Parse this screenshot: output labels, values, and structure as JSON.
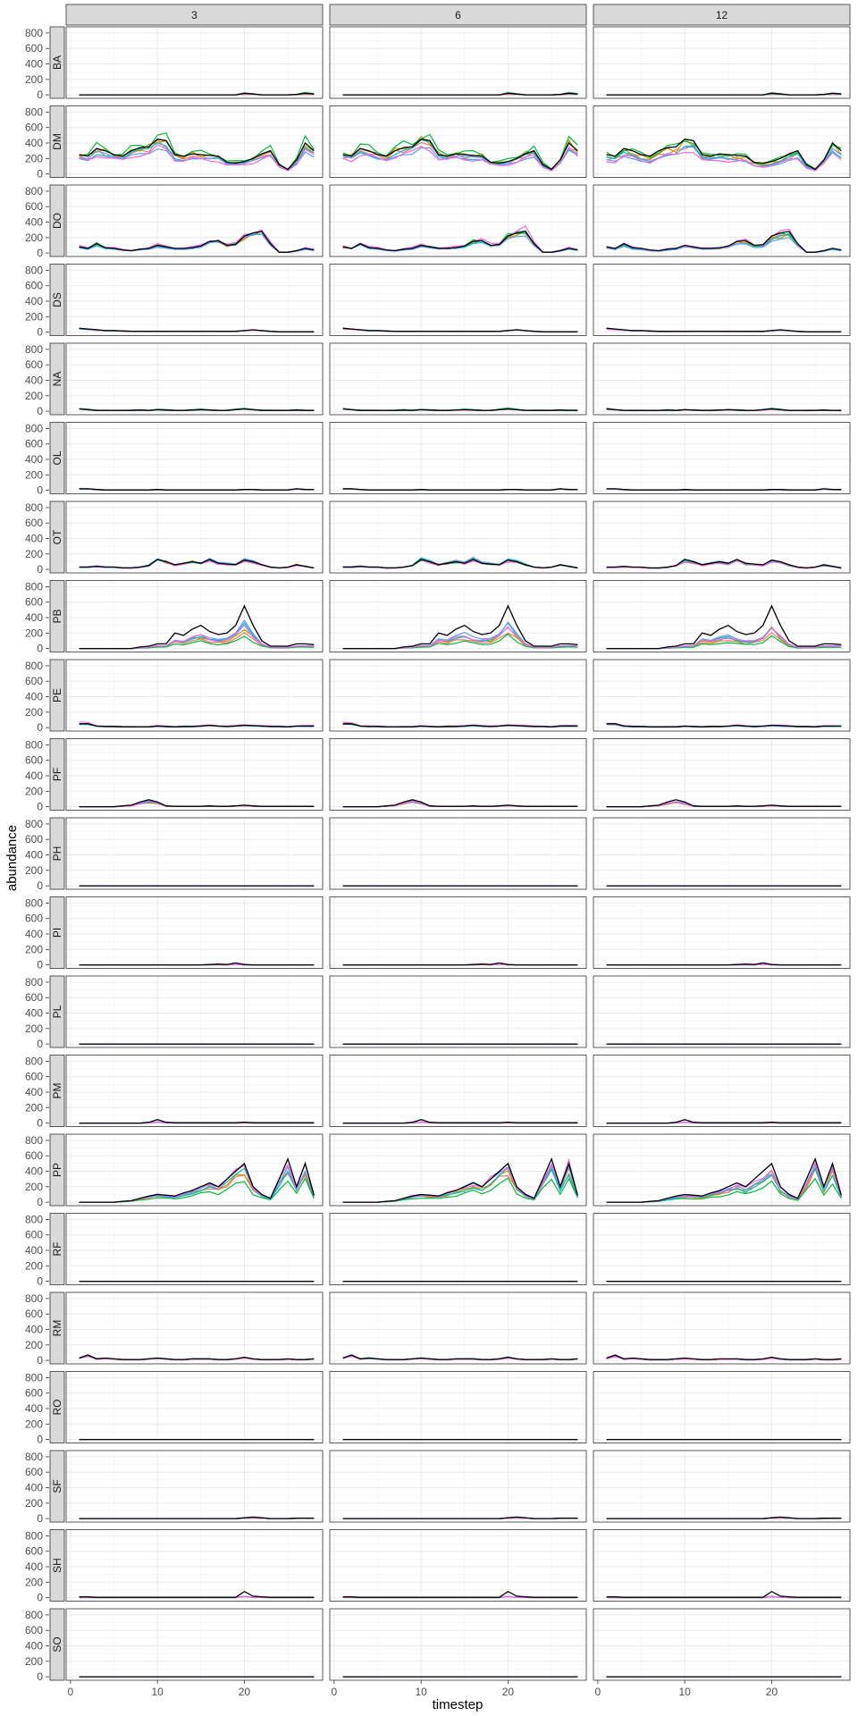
{
  "chart_data": {
    "type": "line",
    "layout": "facet_grid",
    "xlabel": "timestep",
    "ylabel": "abundance",
    "col_facets": [
      "3",
      "6",
      "12"
    ],
    "row_facets": [
      "BA",
      "DM",
      "DO",
      "DS",
      "NA",
      "OL",
      "OT",
      "PB",
      "PE",
      "PF",
      "PH",
      "PI",
      "PL",
      "PM",
      "PP",
      "RF",
      "RM",
      "RO",
      "SF",
      "SH",
      "SO"
    ],
    "xlim": [
      -0.5,
      29.0
    ],
    "ylim": [
      -45,
      880
    ],
    "x_ticks": [
      0,
      10,
      20
    ],
    "y_ticks": [
      0,
      200,
      400,
      600,
      800
    ],
    "grid": true,
    "legend": "none",
    "series_colors": [
      "#000000",
      "#F8766D",
      "#B79F00",
      "#00BA38",
      "#00BFC4",
      "#619CFF",
      "#F564E3"
    ],
    "x": [
      1,
      2,
      3,
      4,
      5,
      6,
      7,
      8,
      9,
      10,
      11,
      12,
      13,
      14,
      15,
      16,
      17,
      18,
      19,
      20,
      21,
      22,
      23,
      24,
      25,
      26,
      27,
      28
    ],
    "observed": {
      "BA": [
        0,
        0,
        0,
        0,
        0,
        0,
        0,
        0,
        0,
        0,
        0,
        0,
        0,
        0,
        0,
        0,
        0,
        0,
        0,
        20,
        10,
        0,
        0,
        0,
        0,
        5,
        20,
        10
      ],
      "DM": [
        250,
        230,
        330,
        300,
        250,
        230,
        300,
        340,
        350,
        450,
        430,
        250,
        230,
        260,
        250,
        240,
        230,
        150,
        140,
        160,
        200,
        260,
        300,
        120,
        60,
        180,
        400,
        300
      ],
      "DO": [
        80,
        60,
        120,
        70,
        60,
        40,
        30,
        50,
        60,
        100,
        80,
        60,
        60,
        70,
        90,
        150,
        160,
        100,
        110,
        220,
        260,
        280,
        120,
        10,
        10,
        30,
        60,
        40
      ],
      "DS": [
        50,
        40,
        30,
        20,
        20,
        15,
        10,
        10,
        10,
        10,
        10,
        10,
        10,
        10,
        10,
        10,
        10,
        10,
        10,
        20,
        30,
        20,
        10,
        5,
        5,
        5,
        5,
        5
      ],
      "NA": [
        30,
        20,
        10,
        10,
        10,
        10,
        10,
        15,
        10,
        20,
        15,
        10,
        10,
        15,
        20,
        15,
        10,
        10,
        20,
        30,
        20,
        10,
        10,
        10,
        10,
        15,
        10,
        10
      ],
      "OL": [
        20,
        20,
        10,
        5,
        5,
        5,
        5,
        5,
        5,
        10,
        5,
        5,
        5,
        5,
        5,
        5,
        5,
        5,
        5,
        10,
        10,
        5,
        5,
        5,
        5,
        20,
        10,
        10
      ],
      "OT": [
        30,
        30,
        40,
        30,
        30,
        20,
        20,
        30,
        50,
        130,
        100,
        60,
        80,
        100,
        80,
        130,
        80,
        70,
        60,
        120,
        100,
        60,
        30,
        20,
        30,
        60,
        40,
        20
      ],
      "PB": [
        0,
        0,
        0,
        0,
        0,
        0,
        0,
        20,
        30,
        60,
        60,
        200,
        170,
        250,
        300,
        220,
        180,
        200,
        300,
        550,
        300,
        100,
        30,
        30,
        30,
        60,
        60,
        50
      ],
      "PE": [
        50,
        50,
        20,
        15,
        15,
        10,
        10,
        10,
        10,
        20,
        15,
        10,
        15,
        15,
        20,
        30,
        20,
        15,
        20,
        30,
        25,
        20,
        15,
        15,
        10,
        20,
        20,
        20
      ],
      "PF": [
        0,
        0,
        0,
        0,
        0,
        10,
        20,
        60,
        90,
        60,
        10,
        5,
        5,
        5,
        5,
        10,
        5,
        5,
        10,
        20,
        10,
        5,
        5,
        5,
        5,
        5,
        5,
        5
      ],
      "PH": [
        0,
        0,
        0,
        0,
        0,
        0,
        0,
        0,
        0,
        0,
        0,
        0,
        0,
        0,
        0,
        0,
        0,
        0,
        0,
        0,
        0,
        0,
        0,
        0,
        0,
        0,
        0,
        0
      ],
      "PI": [
        0,
        0,
        0,
        0,
        0,
        0,
        0,
        0,
        0,
        0,
        0,
        0,
        0,
        0,
        0,
        5,
        10,
        5,
        25,
        5,
        0,
        0,
        0,
        0,
        0,
        0,
        0,
        0
      ],
      "PL": [
        0,
        0,
        0,
        0,
        0,
        0,
        0,
        0,
        0,
        0,
        0,
        0,
        0,
        0,
        0,
        0,
        0,
        0,
        0,
        0,
        0,
        0,
        0,
        0,
        0,
        0,
        0,
        0
      ],
      "PM": [
        0,
        0,
        0,
        0,
        0,
        0,
        0,
        0,
        10,
        45,
        10,
        5,
        5,
        5,
        5,
        5,
        5,
        5,
        5,
        10,
        5,
        5,
        5,
        5,
        5,
        5,
        5,
        5
      ],
      "PP": [
        0,
        0,
        0,
        0,
        0,
        10,
        20,
        50,
        80,
        100,
        90,
        80,
        120,
        150,
        200,
        250,
        200,
        300,
        400,
        500,
        200,
        100,
        50,
        300,
        560,
        200,
        500,
        90
      ],
      "RF": [
        0,
        0,
        0,
        0,
        0,
        0,
        0,
        0,
        0,
        0,
        0,
        0,
        0,
        0,
        0,
        0,
        0,
        0,
        0,
        0,
        0,
        0,
        0,
        0,
        0,
        0,
        0,
        0
      ],
      "RM": [
        30,
        70,
        20,
        30,
        20,
        10,
        10,
        10,
        20,
        30,
        20,
        10,
        10,
        20,
        20,
        20,
        10,
        10,
        20,
        40,
        20,
        10,
        10,
        10,
        20,
        10,
        10,
        20
      ],
      "RO": [
        0,
        0,
        0,
        0,
        0,
        0,
        0,
        0,
        0,
        0,
        0,
        0,
        0,
        0,
        0,
        0,
        0,
        0,
        0,
        0,
        0,
        0,
        0,
        0,
        0,
        0,
        0,
        0
      ],
      "SF": [
        0,
        0,
        0,
        0,
        0,
        0,
        0,
        0,
        0,
        0,
        0,
        0,
        0,
        0,
        0,
        0,
        0,
        0,
        0,
        10,
        20,
        10,
        0,
        0,
        0,
        5,
        5,
        5
      ],
      "SH": [
        10,
        10,
        5,
        5,
        5,
        5,
        5,
        5,
        5,
        5,
        5,
        5,
        5,
        5,
        5,
        5,
        5,
        5,
        5,
        80,
        20,
        10,
        5,
        5,
        5,
        5,
        5,
        5
      ],
      "SO": [
        0,
        0,
        0,
        0,
        0,
        0,
        0,
        0,
        0,
        0,
        0,
        0,
        0,
        0,
        0,
        0,
        0,
        0,
        0,
        0,
        0,
        0,
        0,
        0,
        0,
        0,
        0,
        0
      ]
    },
    "model_scale": {
      "BA": [
        0.3,
        1.0,
        1.4,
        0.8,
        1.2,
        1.0
      ],
      "DM": [
        0.88,
        0.98,
        1.1,
        0.85,
        0.8,
        0.75
      ],
      "DO": [
        0.95,
        0.9,
        1.0,
        0.9,
        0.85,
        1.1
      ],
      "DS": [
        0.9,
        0.9,
        1.0,
        0.9,
        0.9,
        0.9
      ],
      "NA": [
        0.9,
        1.0,
        1.3,
        1.0,
        0.9,
        0.9
      ],
      "OL": [
        0.9,
        0.9,
        0.9,
        0.9,
        0.9,
        0.9
      ],
      "OT": [
        0.9,
        1.0,
        0.95,
        1.0,
        1.05,
        0.9
      ],
      "PB": [
        0.4,
        0.5,
        0.3,
        0.55,
        0.6,
        0.55
      ],
      "PE": [
        0.9,
        0.9,
        0.9,
        0.9,
        0.9,
        1.3
      ],
      "PF": [
        0.6,
        0.7,
        0.7,
        0.8,
        0.8,
        0.7
      ],
      "PH": [
        1,
        1,
        1,
        1,
        1,
        1
      ],
      "PI": [
        0.2,
        0.2,
        0.2,
        0.2,
        0.2,
        0.2
      ],
      "PL": [
        1,
        1,
        1,
        1,
        1,
        1
      ],
      "PM": [
        0.3,
        0.3,
        0.3,
        0.3,
        0.3,
        0.3
      ],
      "PP": [
        0.75,
        0.8,
        0.55,
        0.8,
        0.9,
        0.95
      ],
      "RF": [
        1,
        1,
        1,
        1,
        1,
        1
      ],
      "RM": [
        0.8,
        0.9,
        1.0,
        0.9,
        0.9,
        0.8
      ],
      "RO": [
        1,
        1,
        1,
        1,
        1,
        1
      ],
      "SF": [
        0.4,
        0.5,
        0.4,
        0.5,
        0.6,
        0.5
      ],
      "SH": [
        0.2,
        0.2,
        0.2,
        0.2,
        0.2,
        0.2
      ],
      "SO": [
        1,
        1,
        1,
        1,
        1,
        1
      ]
    },
    "col_scale": [
      1.0,
      1.03,
      0.92
    ]
  }
}
